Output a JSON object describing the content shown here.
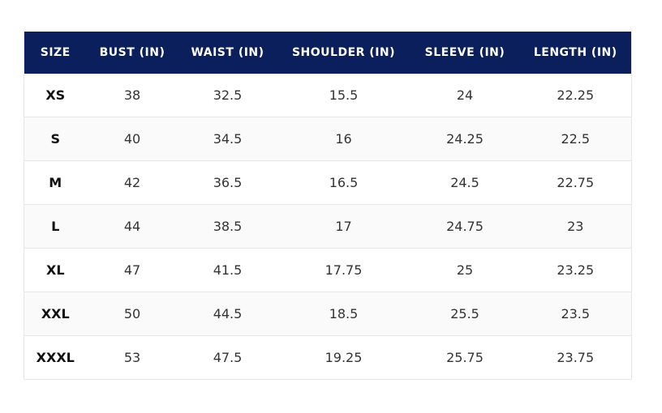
{
  "table": {
    "header": [
      "SIZE",
      "BUST (IN)",
      "WAIST (IN)",
      "SHOULDER (IN)",
      "SLEEVE (IN)",
      "LENGTH (IN)"
    ],
    "rows": [
      [
        "XS",
        "38",
        "32.5",
        "15.5",
        "24",
        "22.25"
      ],
      [
        "S",
        "40",
        "34.5",
        "16",
        "24.25",
        "22.5"
      ],
      [
        "M",
        "42",
        "36.5",
        "16.5",
        "24.5",
        "22.75"
      ],
      [
        "L",
        "44",
        "38.5",
        "17",
        "24.75",
        "23"
      ],
      [
        "XL",
        "47",
        "41.5",
        "17.75",
        "25",
        "23.25"
      ],
      [
        "XXL",
        "50",
        "44.5",
        "18.5",
        "25.5",
        "23.5"
      ],
      [
        "XXXL",
        "53",
        "47.5",
        "19.25",
        "25.75",
        "23.75"
      ]
    ]
  }
}
